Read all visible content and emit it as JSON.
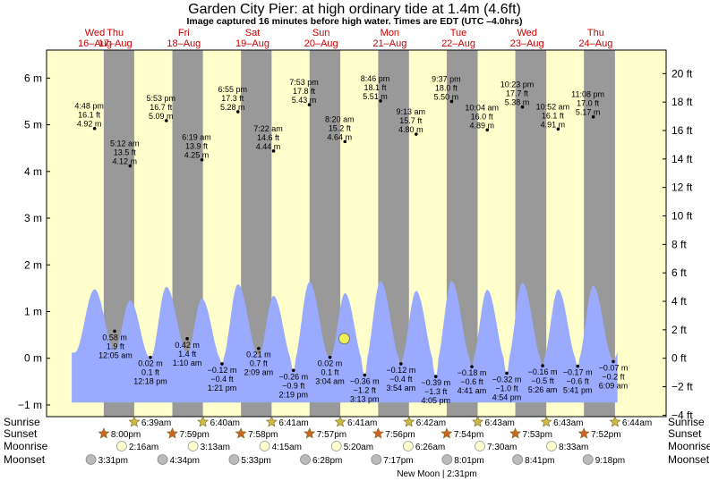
{
  "chart_data": {
    "type": "area",
    "title": "Garden City Pier: at high  ordinary tide at 1.4m (4.6ft)",
    "subtitle": "Image captured 16 minutes before high water. Times are EDT (UTC –4.0hrs)",
    "y_left_unit": "m",
    "y_right_unit": "ft",
    "ylim": [
      -1.25,
      6.6
    ],
    "y_left_ticks": [
      -1,
      0,
      1,
      2,
      3,
      4,
      5,
      6
    ],
    "y_left_labels": [
      "−1 m",
      "0 m",
      "1 m",
      "2 m",
      "3 m",
      "4 m",
      "5 m",
      "6 m"
    ],
    "y_right_ticks_ft": [
      -4,
      -2,
      0,
      2,
      4,
      6,
      8,
      10,
      12,
      14,
      16,
      18,
      20
    ],
    "y_right_labels": [
      "−4 ft",
      "−2 ft",
      "0 ft",
      "2 ft",
      "4 ft",
      "6 ft",
      "8 ft",
      "10 ft",
      "12 ft",
      "14 ft",
      "16 ft",
      "18 ft",
      "20 ft"
    ],
    "x_start": "2023-08-16 00:00",
    "x_end": "2023-08-24 23:59",
    "days": [
      {
        "weekday": "Wed",
        "date": "16–Aug"
      },
      {
        "weekday": "Thu",
        "date": "17–Aug"
      },
      {
        "weekday": "Fri",
        "date": "18–Aug"
      },
      {
        "weekday": "Sat",
        "date": "19–Aug"
      },
      {
        "weekday": "Sun",
        "date": "20–Aug"
      },
      {
        "weekday": "Mon",
        "date": "21–Aug"
      },
      {
        "weekday": "Tue",
        "date": "22–Aug"
      },
      {
        "weekday": "Wed",
        "date": "23–Aug"
      },
      {
        "weekday": "Thu",
        "date": "24–Aug"
      }
    ],
    "tide_events": [
      {
        "time": "2023-08-16 16:48",
        "label": "4:48 pm",
        "ft": "16.1 ft",
        "m": 4.92,
        "m_label": "4.92 m",
        "type": "high"
      },
      {
        "time": "2023-08-16 23:49",
        "label": "",
        "ft": "",
        "m": 0.58,
        "m_label": "0.58 m",
        "type": "low"
      },
      {
        "time": "2023-08-17 05:12",
        "label": "5:12 am",
        "ft": "13.5 ft",
        "m": 4.12,
        "m_label": "4.12 m",
        "type": "high"
      },
      {
        "time": "2023-08-17 12:18",
        "label": "12:18 pm",
        "ft": "0.1 ft",
        "m": 0.02,
        "m_label": "0.02 m",
        "type": "low"
      },
      {
        "time": "2023-08-17 17:53",
        "label": "5:53 pm",
        "ft": "16.7 ft",
        "m": 5.09,
        "m_label": "5.09 m",
        "type": "high"
      },
      {
        "time": "2023-08-18 01:10",
        "label": "1:10 am",
        "ft": "1.4 ft",
        "m": 0.42,
        "m_label": "0.42 m",
        "type": "low"
      },
      {
        "time": "2023-08-18 06:19",
        "label": "6:19 am",
        "ft": "13.9 ft",
        "m": 4.25,
        "m_label": "4.25 m",
        "type": "high"
      },
      {
        "time": "2023-08-18 13:21",
        "label": "1:21 pm",
        "ft": "−0.4 ft",
        "m": -0.12,
        "m_label": "−0.12 m",
        "type": "low"
      },
      {
        "time": "2023-08-18 18:55",
        "label": "6:55 pm",
        "ft": "17.3 ft",
        "m": 5.28,
        "m_label": "5.28 m",
        "type": "high"
      },
      {
        "time": "2023-08-19 02:09",
        "label": "2:09 am",
        "ft": "0.7 ft",
        "m": 0.21,
        "m_label": "0.21 m",
        "type": "low"
      },
      {
        "time": "2023-08-19 07:22",
        "label": "7:22 am",
        "ft": "14.6 ft",
        "m": 4.44,
        "m_label": "4.44 m",
        "type": "high"
      },
      {
        "time": "2023-08-19 14:19",
        "label": "2:19 pm",
        "ft": "−0.9 ft",
        "m": -0.26,
        "m_label": "−0.26 m",
        "type": "low"
      },
      {
        "time": "2023-08-19 19:53",
        "label": "7:53 pm",
        "ft": "17.8 ft",
        "m": 5.43,
        "m_label": "5.43 m",
        "type": "high"
      },
      {
        "time": "2023-08-20 03:04",
        "label": "3:04 am",
        "ft": "0.1 ft",
        "m": 0.02,
        "m_label": "0.02 m",
        "type": "low"
      },
      {
        "time": "2023-08-20 08:20",
        "label": "8:20 am",
        "ft": "15.2 ft",
        "m": 4.64,
        "m_label": "4.64 m",
        "type": "high"
      },
      {
        "time": "2023-08-20 15:13",
        "label": "3:13 pm",
        "ft": "−1.2 ft",
        "m": -0.36,
        "m_label": "−0.36 m",
        "type": "low"
      },
      {
        "time": "2023-08-20 20:46",
        "label": "8:46 pm",
        "ft": "18.1 ft",
        "m": 5.51,
        "m_label": "5.51 m",
        "type": "high"
      },
      {
        "time": "2023-08-21 03:54",
        "label": "3:54 am",
        "ft": "−0.4 ft",
        "m": -0.12,
        "m_label": "−0.12 m",
        "type": "low"
      },
      {
        "time": "2023-08-21 09:13",
        "label": "9:13 am",
        "ft": "15.7 ft",
        "m": 4.8,
        "m_label": "4.80 m",
        "type": "high"
      },
      {
        "time": "2023-08-21 16:05",
        "label": "4:05 pm",
        "ft": "−1.3 ft",
        "m": -0.39,
        "m_label": "−0.39 m",
        "type": "low"
      },
      {
        "time": "2023-08-21 21:37",
        "label": "9:37 pm",
        "ft": "18.0 ft",
        "m": 5.5,
        "m_label": "5.50 m",
        "type": "high"
      },
      {
        "time": "2023-08-22 04:41",
        "label": "4:41 am",
        "ft": "−0.6 ft",
        "m": -0.18,
        "m_label": "−0.18 m",
        "type": "low"
      },
      {
        "time": "2023-08-22 10:04",
        "label": "10:04 am",
        "ft": "16.0 ft",
        "m": 4.89,
        "m_label": "4.89 m",
        "type": "high"
      },
      {
        "time": "2023-08-22 16:54",
        "label": "4:54 pm",
        "ft": "−1.0 ft",
        "m": -0.32,
        "m_label": "−0.32 m",
        "type": "low"
      },
      {
        "time": "2023-08-22 22:23",
        "label": "10:23 pm",
        "ft": "17.7 ft",
        "m": 5.38,
        "m_label": "5.38 m",
        "type": "high"
      },
      {
        "time": "2023-08-23 05:26",
        "label": "5:26 am",
        "ft": "−0.5 ft",
        "m": -0.16,
        "m_label": "−0.16 m",
        "type": "low"
      },
      {
        "time": "2023-08-23 10:52",
        "label": "10:52 am",
        "ft": "16.1 ft",
        "m": 4.91,
        "m_label": "4.91 m",
        "type": "high"
      },
      {
        "time": "2023-08-23 17:41",
        "label": "5:41 pm",
        "ft": "−0.6 ft",
        "m": -0.17,
        "m_label": "−0.17 m",
        "type": "low"
      },
      {
        "time": "2023-08-23 23:08",
        "label": "11:08 pm",
        "ft": "17.0 ft",
        "m": 5.17,
        "m_label": "5.17 m",
        "type": "high"
      },
      {
        "time": "2023-08-24 06:09",
        "label": "6:09 am",
        "ft": "−0.2 ft",
        "m": -0.07,
        "m_label": "−0.07 m",
        "type": "low"
      }
    ],
    "extra_low": {
      "time": "2023-08-17 00:05",
      "label": "12:05 am",
      "ft": "1.9 ft"
    },
    "current_marker": {
      "time": "2023-08-20 08:04",
      "m": 1.4
    },
    "astronomy": {
      "sunrise_label": "Sunrise",
      "sunset_label": "Sunset",
      "moonrise_label": "Moonrise",
      "moonset_label": "Moonset",
      "sunrise": [
        {
          "time": "2023-08-17 06:39",
          "label": "6:39am"
        },
        {
          "time": "2023-08-18 06:40",
          "label": "6:40am"
        },
        {
          "time": "2023-08-19 06:41",
          "label": "6:41am"
        },
        {
          "time": "2023-08-20 06:41",
          "label": "6:41am"
        },
        {
          "time": "2023-08-21 06:42",
          "label": "6:42am"
        },
        {
          "time": "2023-08-22 06:43",
          "label": "6:43am"
        },
        {
          "time": "2023-08-23 06:43",
          "label": "6:43am"
        },
        {
          "time": "2023-08-24 06:44",
          "label": "6:44am"
        }
      ],
      "sunset": [
        {
          "time": "2023-08-16 20:00",
          "label": "8:00pm"
        },
        {
          "time": "2023-08-17 19:59",
          "label": "7:59pm"
        },
        {
          "time": "2023-08-18 19:58",
          "label": "7:58pm"
        },
        {
          "time": "2023-08-19 19:57",
          "label": "7:57pm"
        },
        {
          "time": "2023-08-20 19:56",
          "label": "7:56pm"
        },
        {
          "time": "2023-08-21 19:54",
          "label": "7:54pm"
        },
        {
          "time": "2023-08-22 19:53",
          "label": "7:53pm"
        },
        {
          "time": "2023-08-23 19:52",
          "label": "7:52pm"
        }
      ],
      "moonrise": [
        {
          "time": "2023-08-17 02:16",
          "label": "2:16am"
        },
        {
          "time": "2023-08-18 03:13",
          "label": "3:13am"
        },
        {
          "time": "2023-08-19 04:15",
          "label": "4:15am"
        },
        {
          "time": "2023-08-20 05:20",
          "label": "5:20am"
        },
        {
          "time": "2023-08-21 06:26",
          "label": "6:26am"
        },
        {
          "time": "2023-08-22 07:30",
          "label": "7:30am"
        },
        {
          "time": "2023-08-23 08:33",
          "label": "8:33am"
        }
      ],
      "moonset": [
        {
          "time": "2023-08-16 15:31",
          "label": "3:31pm"
        },
        {
          "time": "2023-08-17 16:34",
          "label": "4:34pm"
        },
        {
          "time": "2023-08-18 17:33",
          "label": "5:33pm"
        },
        {
          "time": "2023-08-19 18:28",
          "label": "6:28pm"
        },
        {
          "time": "2023-08-20 19:17",
          "label": "7:17pm"
        },
        {
          "time": "2023-08-21 20:01",
          "label": "8:01pm"
        },
        {
          "time": "2023-08-22 20:41",
          "label": "8:41pm"
        },
        {
          "time": "2023-08-23 21:18",
          "label": "9:18pm"
        }
      ],
      "new_moon": {
        "label": "New Moon",
        "time": "2023-08-16 14:31",
        "time_label": "2:31pm"
      }
    },
    "colors": {
      "day": "#ffffcc",
      "night": "#999999",
      "water": "#99aaff",
      "water_edge": "#8899ee",
      "day_label": "#cc0000",
      "marker": "#eeee55",
      "sun": "#ccbb44",
      "sunset": "#cc6622",
      "moonrise": "#ffffcc",
      "moonset": "#bbbbbb"
    }
  }
}
